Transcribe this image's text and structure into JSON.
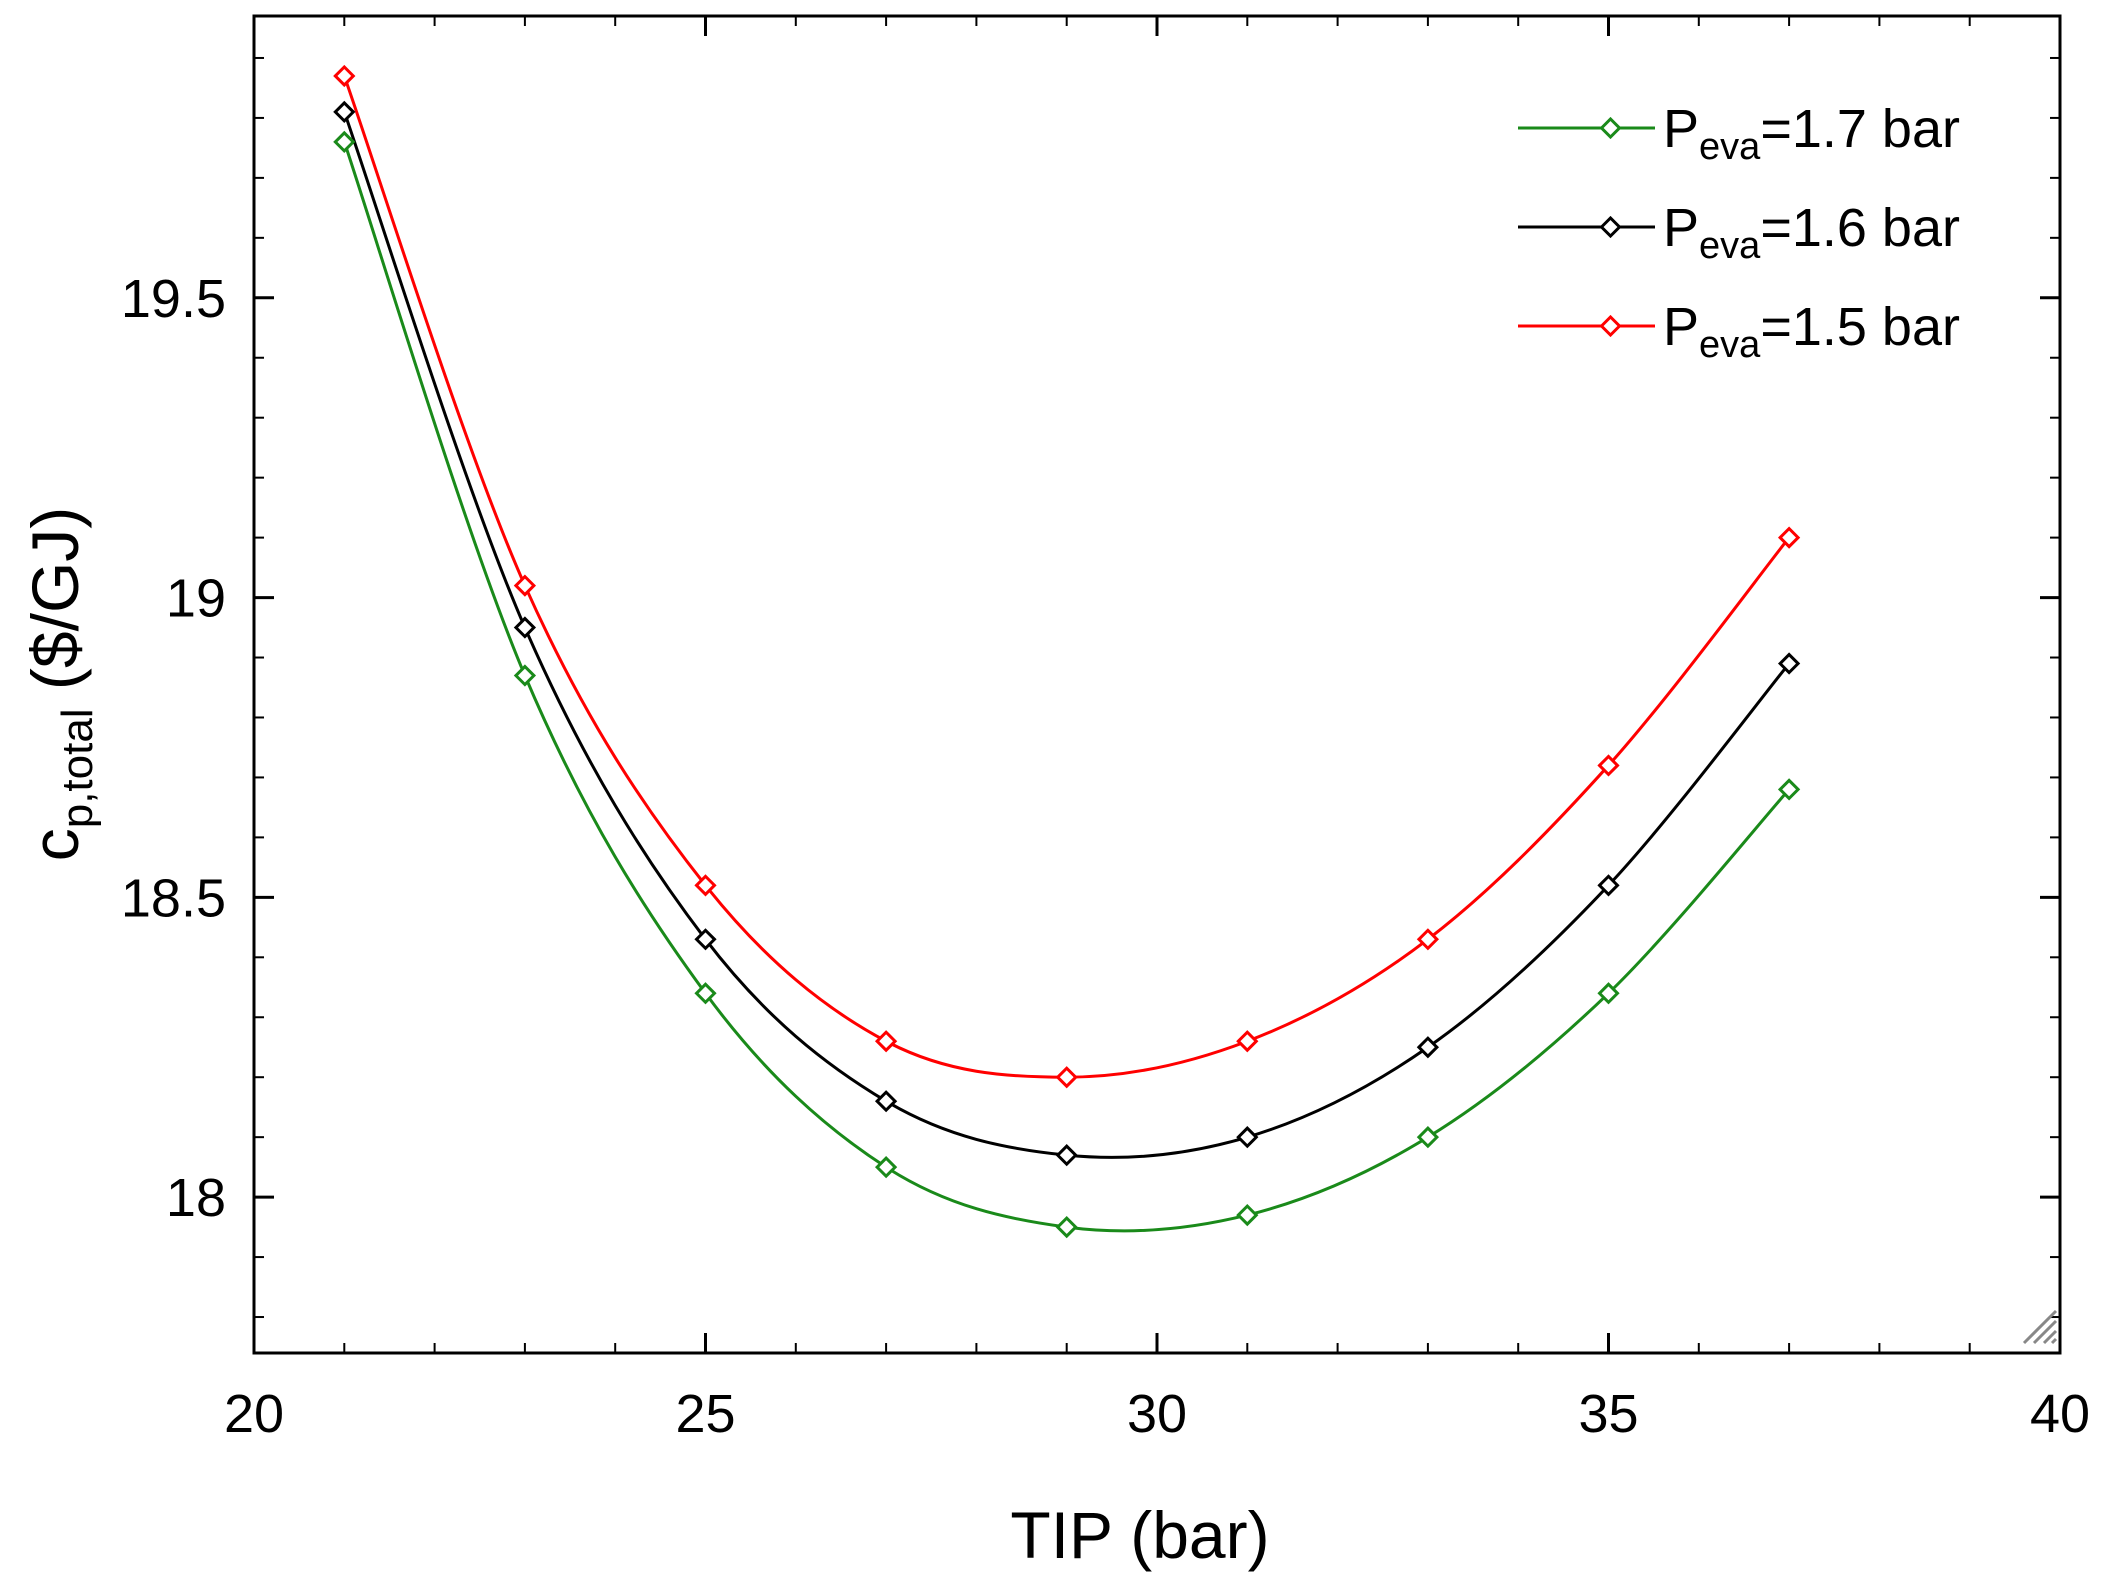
{
  "chart_data": {
    "type": "line",
    "xlabel": "TIP (bar)",
    "ylabel": {
      "main": "c",
      "sub": "p,total",
      "unit": " ($/GJ)"
    },
    "xlim": [
      20,
      40
    ],
    "ylim": [
      17.74,
      19.97
    ],
    "x_ticks": [
      20,
      25,
      30,
      35,
      40
    ],
    "x_tick_labels": [
      "20",
      "25",
      "30",
      "35",
      "40"
    ],
    "y_ticks": [
      18,
      18.5,
      19,
      19.5
    ],
    "y_tick_labels": [
      "18",
      "18.5",
      "19",
      "19.5"
    ],
    "x_minor_step": 1,
    "y_minor_step": 0.1,
    "legend_position": "top-right",
    "series": [
      {
        "name": "Peva=1.7 bar",
        "legend_prefix": "P",
        "legend_sub": "eva",
        "legend_suffix": "=1.7 bar",
        "color": "#1a8a1a",
        "x": [
          21,
          23,
          25,
          27,
          29,
          31,
          33,
          35,
          37
        ],
        "y": [
          19.76,
          18.87,
          18.34,
          18.05,
          17.95,
          17.97,
          18.1,
          18.34,
          18.68
        ]
      },
      {
        "name": "Peva=1.6 bar",
        "legend_prefix": "P",
        "legend_sub": "eva",
        "legend_suffix": "=1.6 bar",
        "color": "#000000",
        "x": [
          21,
          23,
          25,
          27,
          29,
          31,
          33,
          35,
          37
        ],
        "y": [
          19.81,
          18.95,
          18.43,
          18.16,
          18.07,
          18.1,
          18.25,
          18.52,
          18.89
        ]
      },
      {
        "name": "Peva=1.5 bar",
        "legend_prefix": "P",
        "legend_sub": "eva",
        "legend_suffix": "=1.5 bar",
        "color": "#ff0000",
        "x": [
          21,
          23,
          25,
          27,
          29,
          31,
          33,
          35,
          37
        ],
        "y": [
          19.87,
          19.02,
          18.52,
          18.26,
          18.2,
          18.26,
          18.43,
          18.72,
          19.1
        ]
      }
    ]
  }
}
